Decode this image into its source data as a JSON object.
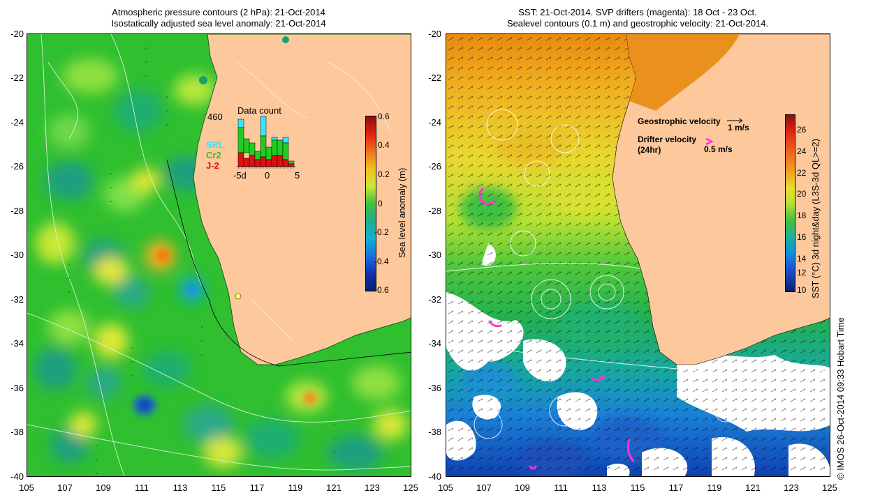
{
  "left_panel": {
    "title_line1": "Atmospheric pressure contours (2 hPa): 21-Oct-2014",
    "title_line2": "Isostatically adjusted sea level anomaly: 21-Oct-2014",
    "y_ticks": [
      "-20",
      "-22",
      "-24",
      "-26",
      "-28",
      "-30",
      "-32",
      "-34",
      "-36",
      "-38",
      "-40"
    ],
    "x_ticks": [
      "105",
      "107",
      "109",
      "111",
      "113",
      "115",
      "117",
      "119",
      "121",
      "123",
      "125"
    ],
    "inset": {
      "count": "460",
      "title": "Data count",
      "legend": [
        {
          "label": "SRL",
          "color": "#33e6ff"
        },
        {
          "label": "Cr2",
          "color": "#22cc22"
        },
        {
          "label": "J-2",
          "color": "#dd1111"
        }
      ],
      "x_labels": [
        "-5d",
        "0",
        "5"
      ]
    },
    "colorbar": {
      "label": "Sea level anomaly (m)",
      "ticks": [
        "0.6",
        "0.4",
        "0.2",
        "0",
        "-0.2",
        "-0.4",
        "-0.6"
      ]
    }
  },
  "right_panel": {
    "title_line1": "SST: 21-Oct-2014. SVP drifters (magenta): 18 Oct - 23 Oct.",
    "title_line2": "Sealevel contours (0.1 m) and geostrophic velocity: 21-Oct-2014.",
    "y_ticks": [
      "-20",
      "-22",
      "-24",
      "-26",
      "-28",
      "-30",
      "-32",
      "-34",
      "-36",
      "-38",
      "-40"
    ],
    "x_ticks": [
      "105",
      "107",
      "109",
      "111",
      "113",
      "115",
      "117",
      "119",
      "121",
      "123",
      "125"
    ],
    "legend": {
      "geostrophic_label": "Geostrophic velocity",
      "geostrophic_speed": "1 m/s",
      "drifter_label_1": "Drifter velocity",
      "drifter_label_2": "(24hr)",
      "drifter_speed": "0.5 m/s"
    },
    "colorbar": {
      "label": "SST (°C) 3d night&day (L3S-3d QL>=2)",
      "ticks": [
        "26",
        "24",
        "22",
        "20",
        "18",
        "16",
        "14",
        "12",
        "10"
      ]
    }
  },
  "credit": "© IMOS 26-Oct-2014 09:33 Hobart Time"
}
